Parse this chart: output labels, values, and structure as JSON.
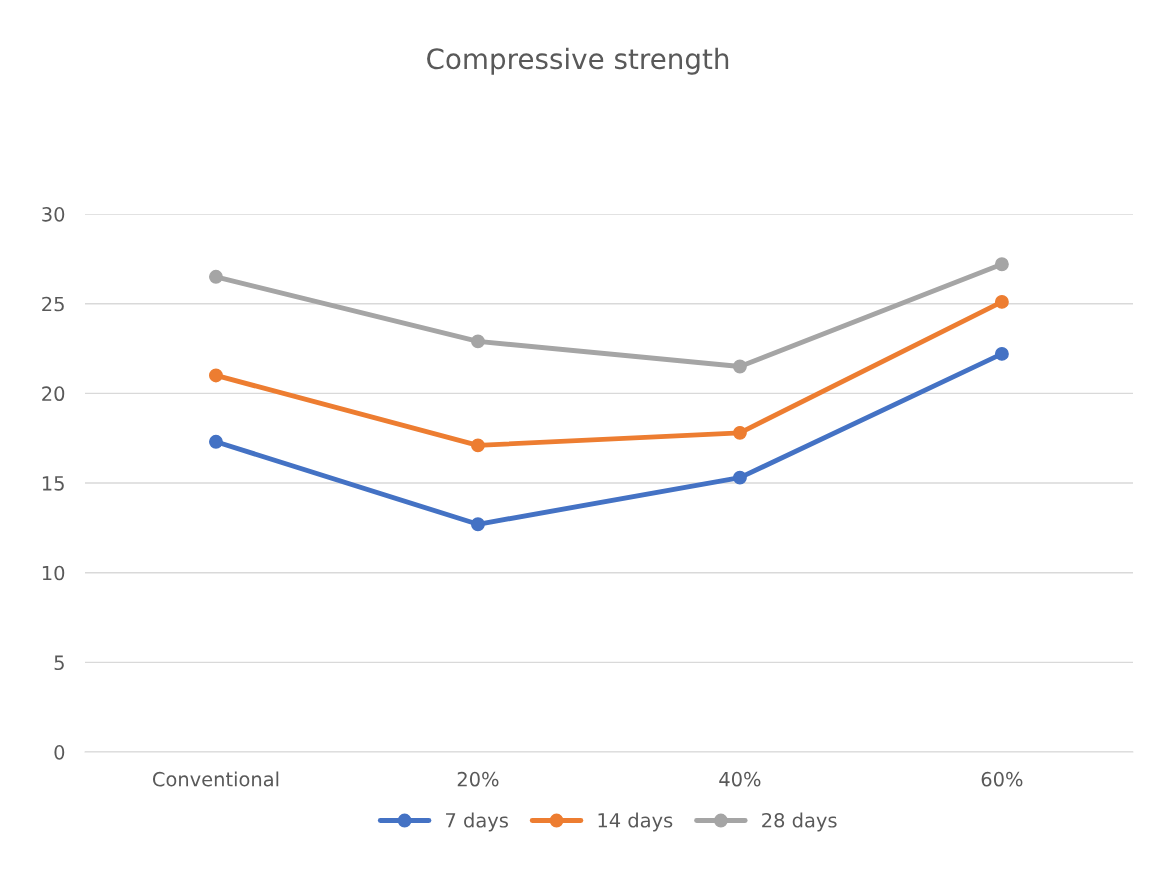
{
  "chart_data": {
    "type": "line",
    "title": "Compressive strength",
    "categories": [
      "Conventional",
      "20%",
      "40%",
      "60%"
    ],
    "series": [
      {
        "name": "7 days",
        "color": "#4472c4",
        "values": [
          17.3,
          12.7,
          15.3,
          22.2
        ]
      },
      {
        "name": "14 days",
        "color": "#ed7d31",
        "values": [
          21.0,
          17.1,
          17.8,
          25.1
        ]
      },
      {
        "name": "28 days",
        "color": "#a5a5a5",
        "values": [
          26.5,
          22.9,
          21.5,
          27.2
        ]
      }
    ],
    "ylim": [
      0,
      30
    ],
    "yticks": [
      0,
      5,
      10,
      15,
      20,
      25,
      30
    ],
    "grid": "y",
    "legend": "bottom",
    "marker": "circle",
    "line_style": "solid"
  }
}
